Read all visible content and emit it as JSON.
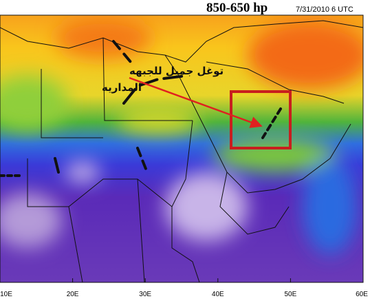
{
  "header": {
    "title": "850-650 hp",
    "timestamp": "7/31/2010 6 UTC"
  },
  "annotation": {
    "lines": [
      "توغل جميل للجبهه",
      "المداريه"
    ]
  },
  "axis": {
    "labels": [
      "10E",
      "20E",
      "30E",
      "40E",
      "50E",
      "60E"
    ]
  }
}
